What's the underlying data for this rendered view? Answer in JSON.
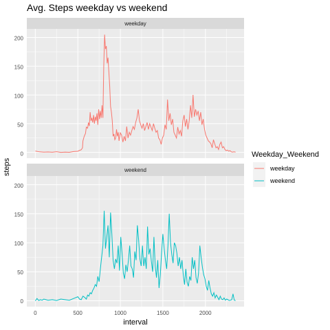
{
  "title": "Avg. Steps weekday vs weekend",
  "chart_data": {
    "type": "line",
    "title": "Avg. Steps weekday vs weekend",
    "xlabel": "interval",
    "ylabel": "steps",
    "xlim": [
      -100,
      2455
    ],
    "ylim": [
      -10,
      215
    ],
    "x_ticks": [
      0,
      500,
      1000,
      1500,
      2000
    ],
    "y_ticks": [
      0,
      50,
      100,
      150,
      200
    ],
    "x_tick_labels": [
      "0",
      "500",
      "1000",
      "1500",
      "2000"
    ],
    "y_tick_labels": [
      "0",
      "50",
      "100",
      "150",
      "200"
    ],
    "grid": true,
    "facet_by": "Weekday_Weekend",
    "facets": [
      "weekday",
      "weekend"
    ],
    "legend": {
      "title": "Weekday_Weekend",
      "position": "right",
      "entries": [
        "weekday",
        "weekend"
      ]
    },
    "series": [
      {
        "name": "weekday",
        "color": "#F8766D",
        "x": [
          0,
          50,
          100,
          150,
          200,
          250,
          300,
          350,
          400,
          450,
          500,
          520,
          540,
          555,
          560,
          575,
          590,
          600,
          615,
          625,
          635,
          645,
          655,
          665,
          675,
          685,
          695,
          705,
          715,
          725,
          735,
          745,
          755,
          765,
          775,
          785,
          795,
          805,
          815,
          825,
          835,
          845,
          855,
          865,
          875,
          885,
          895,
          905,
          915,
          925,
          935,
          945,
          955,
          965,
          975,
          985,
          1000,
          1015,
          1030,
          1045,
          1060,
          1075,
          1090,
          1105,
          1120,
          1135,
          1150,
          1165,
          1180,
          1195,
          1210,
          1225,
          1240,
          1255,
          1270,
          1285,
          1300,
          1315,
          1330,
          1345,
          1360,
          1375,
          1390,
          1405,
          1420,
          1435,
          1450,
          1465,
          1480,
          1495,
          1510,
          1525,
          1540,
          1555,
          1570,
          1585,
          1600,
          1615,
          1630,
          1645,
          1660,
          1675,
          1690,
          1705,
          1720,
          1735,
          1750,
          1765,
          1780,
          1795,
          1810,
          1825,
          1840,
          1855,
          1870,
          1885,
          1900,
          1915,
          1930,
          1945,
          1960,
          1975,
          1990,
          2005,
          2020,
          2035,
          2050,
          2065,
          2080,
          2095,
          2110,
          2125,
          2140,
          2155,
          2170,
          2185,
          2200,
          2215,
          2230,
          2245,
          2260,
          2275,
          2290,
          2305,
          2320,
          2335,
          2355
        ],
        "values": [
          2.3,
          1.0,
          0.5,
          0.8,
          0.3,
          1.2,
          0.0,
          0.5,
          0.2,
          1.5,
          2.0,
          3.5,
          4.5,
          8.0,
          20.0,
          28.0,
          33.0,
          44.0,
          42.0,
          52.0,
          46.0,
          70.0,
          55.0,
          60.0,
          52.0,
          65.0,
          50.0,
          62.0,
          55.0,
          68.0,
          48.0,
          75.0,
          58.0,
          72.0,
          60.0,
          82.0,
          60.0,
          150.0,
          205.0,
          180.0,
          185.0,
          155.0,
          165.0,
          140.0,
          115.0,
          80.0,
          70.0,
          55.0,
          28.0,
          32.0,
          22.0,
          25.0,
          40.0,
          28.0,
          35.0,
          20.0,
          34.0,
          30.0,
          18.0,
          28.0,
          20.0,
          45.0,
          25.0,
          35.0,
          30.0,
          38.0,
          45.0,
          40.0,
          52.0,
          60.0,
          75.0,
          55.0,
          48.0,
          42.0,
          50.0,
          38.0,
          45.0,
          52.0,
          40.0,
          50.0,
          44.0,
          38.0,
          50.0,
          42.0,
          35.0,
          38.0,
          25.0,
          22.0,
          14.0,
          25.0,
          30.0,
          48.0,
          40.0,
          92.0,
          55.0,
          68.0,
          48.0,
          58.0,
          35.0,
          30.0,
          25.0,
          44.0,
          32.0,
          38.0,
          28.0,
          55.0,
          65.0,
          45.0,
          58.0,
          40.0,
          55.0,
          82.0,
          60.0,
          100.0,
          62.0,
          75.0,
          65.0,
          72.0,
          55.0,
          70.0,
          48.0,
          58.0,
          40.0,
          30.0,
          25.0,
          20.0,
          18.0,
          15.0,
          8.0,
          22.0,
          15.0,
          8.0,
          10.0,
          5.0,
          14.0,
          18.0,
          8.0,
          10.0,
          5.0,
          3.0,
          4.0,
          2.0,
          3.0,
          1.0,
          0.5,
          1.0,
          0.5
        ]
      },
      {
        "name": "weekend",
        "color": "#00BFC4",
        "x": [
          0,
          20,
          40,
          60,
          80,
          100,
          150,
          200,
          250,
          300,
          350,
          400,
          450,
          500,
          520,
          540,
          560,
          580,
          600,
          615,
          630,
          645,
          660,
          675,
          690,
          705,
          720,
          735,
          750,
          765,
          780,
          795,
          810,
          825,
          840,
          855,
          870,
          885,
          900,
          915,
          930,
          945,
          960,
          975,
          990,
          1005,
          1020,
          1035,
          1050,
          1065,
          1080,
          1095,
          1110,
          1125,
          1140,
          1155,
          1170,
          1185,
          1200,
          1215,
          1230,
          1245,
          1260,
          1275,
          1290,
          1305,
          1320,
          1335,
          1350,
          1365,
          1380,
          1395,
          1410,
          1425,
          1440,
          1455,
          1470,
          1485,
          1500,
          1515,
          1530,
          1545,
          1560,
          1575,
          1590,
          1605,
          1620,
          1635,
          1650,
          1665,
          1680,
          1695,
          1710,
          1725,
          1740,
          1755,
          1770,
          1785,
          1800,
          1815,
          1830,
          1845,
          1860,
          1875,
          1890,
          1905,
          1920,
          1935,
          1950,
          1965,
          1980,
          1995,
          2010,
          2025,
          2040,
          2055,
          2070,
          2085,
          2100,
          2115,
          2130,
          2145,
          2160,
          2175,
          2190,
          2205,
          2220,
          2235,
          2250,
          2265,
          2280,
          2295,
          2310,
          2325,
          2340,
          2355
        ],
        "values": [
          0.0,
          4.0,
          0.5,
          2.0,
          1.0,
          3.0,
          1.0,
          2.0,
          0.5,
          3.0,
          2.0,
          1.0,
          4.0,
          7.0,
          3.0,
          2.0,
          8.0,
          6.0,
          3.0,
          10.0,
          8.0,
          14.0,
          12.0,
          18.0,
          22.0,
          28.0,
          25.0,
          42.0,
          33.0,
          55.0,
          75.0,
          95.0,
          155.0,
          90.0,
          110.0,
          130.0,
          75.0,
          152.0,
          115.0,
          70.0,
          55.0,
          72.0,
          65.0,
          95.0,
          52.0,
          110.0,
          82.0,
          48.0,
          38.0,
          62.0,
          50.0,
          70.0,
          95.0,
          60.0,
          55.0,
          40.0,
          85.0,
          70.0,
          130.0,
          105.0,
          72.0,
          60.0,
          95.0,
          60.0,
          75.0,
          55.0,
          128.0,
          80.0,
          90.0,
          68.0,
          50.0,
          110.0,
          60.0,
          40.0,
          70.0,
          22.0,
          45.0,
          82.0,
          115.0,
          90.0,
          70.0,
          55.0,
          95.0,
          150.0,
          100.0,
          80.0,
          65.0,
          100.0,
          95.0,
          82.0,
          60.0,
          75.0,
          55.0,
          70.0,
          45.0,
          28.0,
          55.0,
          32.0,
          25.0,
          42.0,
          35.0,
          75.0,
          55.0,
          70.0,
          40.0,
          30.0,
          48.0,
          95.0,
          75.0,
          58.0,
          45.0,
          38.0,
          25.0,
          18.0,
          35.0,
          22.0,
          12.0,
          8.0,
          14.0,
          5.0,
          10.0,
          6.0,
          2.0,
          8.0,
          3.0,
          2.0,
          5.0,
          1.0,
          3.0,
          2.0,
          0.5,
          1.0,
          2.0,
          12.0,
          1.0,
          0.5
        ]
      }
    ]
  }
}
